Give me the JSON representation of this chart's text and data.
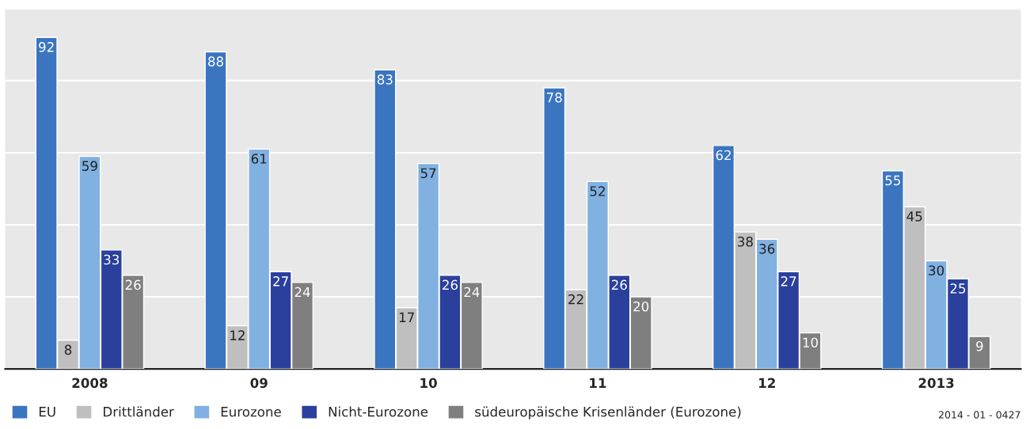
{
  "chart_data": {
    "type": "bar",
    "categories": [
      "2008",
      "09",
      "10",
      "11",
      "12",
      "2013"
    ],
    "series": [
      {
        "name": "EU",
        "color": "#3b75c0",
        "values": [
          92,
          88,
          83,
          78,
          62,
          55
        ]
      },
      {
        "name": "Drittländer",
        "color": "#bfbfbf",
        "values": [
          8,
          12,
          17,
          22,
          38,
          45
        ]
      },
      {
        "name": "Eurozone",
        "color": "#80b1e1",
        "values": [
          59,
          61,
          57,
          52,
          36,
          30
        ]
      },
      {
        "name": "Nicht-Eurozone",
        "color": "#2b3f9c",
        "values": [
          33,
          27,
          26,
          26,
          27,
          25
        ]
      },
      {
        "name": "südeuropäische Krisenländer (Eurozone)",
        "color": "#7f7f7f",
        "values": [
          26,
          24,
          24,
          20,
          10,
          9
        ]
      }
    ],
    "ylim": [
      0,
      100
    ],
    "yticks": [
      {
        "value": 0,
        "label": null
      },
      {
        "value": 20,
        "label": null
      },
      {
        "value": 40,
        "label": null
      },
      {
        "value": 60,
        "label": null
      },
      {
        "value": 80,
        "label": null
      },
      {
        "value": 100,
        "label": null
      }
    ],
    "grid": "y",
    "legend": "bottom left",
    "data_labels": true,
    "annotations": [
      "2014 - 01 - 0427"
    ]
  }
}
